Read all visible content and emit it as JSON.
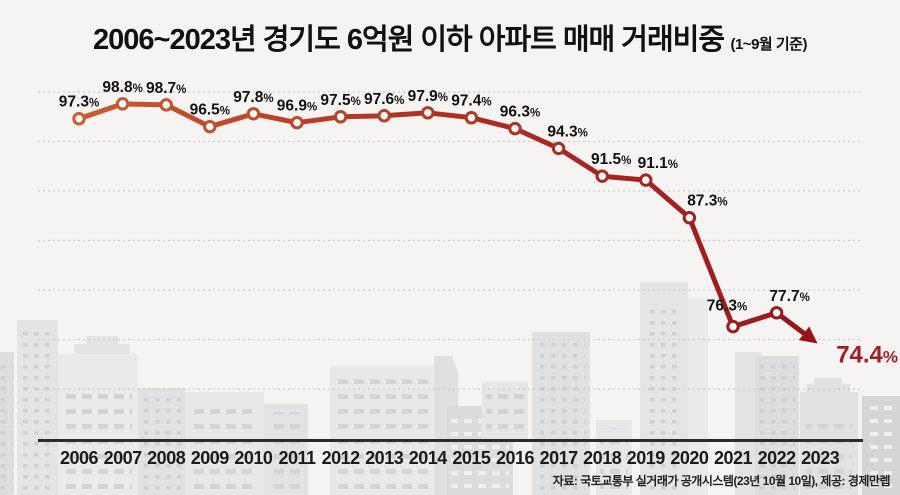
{
  "page": {
    "background": "#f5f4f2"
  },
  "header": {
    "title": "2006~2023년 경기도 6억원 이하 아파트 매매 거래비중",
    "subtitle": "(1~9월 기준)"
  },
  "footer": {
    "source": "자료: 국토교통부 실거래가 공개시스템(23년 10월 10일), 제공: 경제만렙"
  },
  "chart_data": {
    "type": "line",
    "title": "2006~2023년 경기도 6억원 이하 아파트 매매 거래비중",
    "subtitle": "(1~9월 기준)",
    "categories": [
      "2006",
      "2007",
      "2008",
      "2009",
      "2010",
      "2011",
      "2012",
      "2013",
      "2014",
      "2015",
      "2016",
      "2017",
      "2018",
      "2019",
      "2020",
      "2021",
      "2022",
      "2023"
    ],
    "values": [
      97.3,
      98.8,
      98.7,
      96.5,
      97.8,
      96.9,
      97.5,
      97.6,
      97.9,
      97.4,
      96.3,
      94.3,
      91.5,
      91.1,
      87.3,
      76.3,
      77.7,
      74.4
    ],
    "unit": "%",
    "ylim": [
      65,
      102
    ],
    "gridlines": [
      100,
      95,
      90,
      85,
      80,
      75,
      70
    ],
    "grid_style": "dotted",
    "legend": "none",
    "final_point_style": "arrow",
    "source": "자료: 국토교통부 실거래가 공개시스템(23년 10월 10일), 제공: 경제만렙",
    "colors": {
      "line_start": "#cb5c2f",
      "line_mid": "#b13025",
      "line_end": "#97141a",
      "marker_fill": "#ffffff",
      "data_label": "#121212",
      "final_label": "#a21c24",
      "axis": "#2b2b2b",
      "gridline": "#c9c9c9",
      "year_label": "#1b1b1b"
    }
  }
}
